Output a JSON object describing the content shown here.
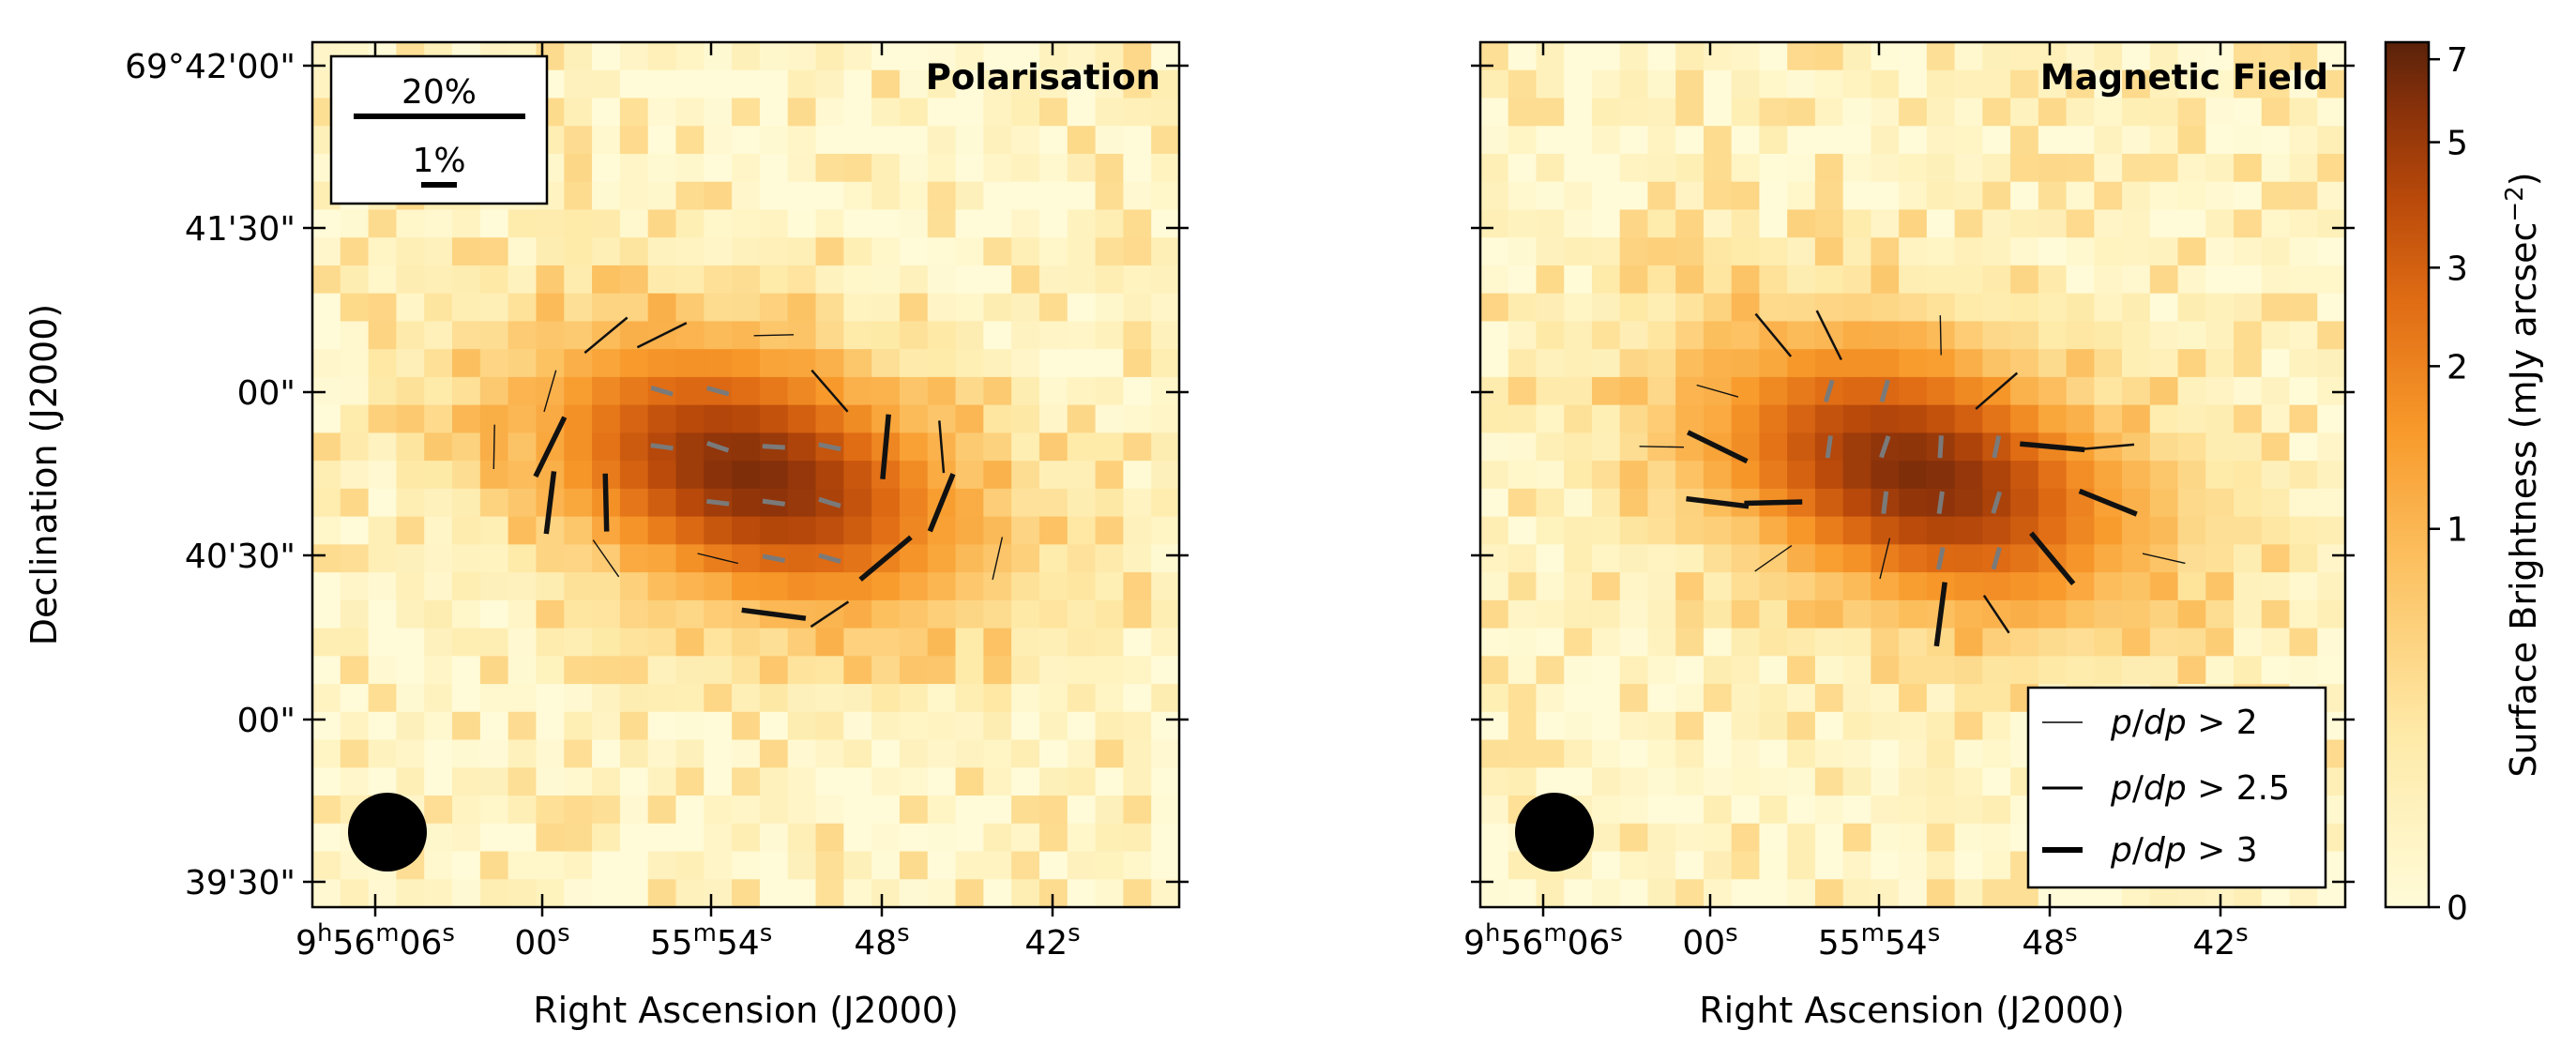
{
  "chart_data": [
    {
      "type": "heatmap",
      "title": "Polarisation",
      "xlabel": "Right Ascension (J2000)",
      "ylabel": "Declination (J2000)",
      "xticks": [
        {
          "main": "9",
          "sup1": "h",
          "mid": "56",
          "sup2": "m",
          "tail": "06",
          "sup3": "s"
        },
        {
          "main": "",
          "sup1": "",
          "mid": "",
          "sup2": "",
          "tail": "00",
          "sup3": "s"
        },
        {
          "main": "",
          "sup1": "",
          "mid": "55",
          "sup2": "m",
          "tail": "54",
          "sup3": "s"
        },
        {
          "main": "",
          "sup1": "",
          "mid": "",
          "sup2": "",
          "tail": "48",
          "sup3": "s"
        },
        {
          "main": "",
          "sup1": "",
          "mid": "",
          "sup2": "",
          "tail": "42",
          "sup3": "s"
        }
      ],
      "yticks": [
        "69°42'00\"",
        "41'30\"",
        "00\"",
        "40'30\"",
        "00\"",
        "39'30\""
      ],
      "scale_legend": [
        "20%",
        "1%"
      ],
      "beam": "circle",
      "vectors": "polarisation"
    },
    {
      "type": "heatmap",
      "title": "Magnetic Field",
      "xlabel": "Right Ascension (J2000)",
      "xticks": [
        {
          "main": "9",
          "sup1": "h",
          "mid": "56",
          "sup2": "m",
          "tail": "06",
          "sup3": "s"
        },
        {
          "main": "",
          "sup1": "",
          "mid": "",
          "sup2": "",
          "tail": "00",
          "sup3": "s"
        },
        {
          "main": "",
          "sup1": "",
          "mid": "55",
          "sup2": "m",
          "tail": "54",
          "sup3": "s"
        },
        {
          "main": "",
          "sup1": "",
          "mid": "",
          "sup2": "",
          "tail": "48",
          "sup3": "s"
        },
        {
          "main": "",
          "sup1": "",
          "mid": "",
          "sup2": "",
          "tail": "42",
          "sup3": "s"
        }
      ],
      "legend": [
        {
          "label": "p/dp > 2",
          "p": "p",
          "dp": "dp",
          "op": " > ",
          "val": "2",
          "weight": "thin"
        },
        {
          "label": "p/dp > 2.5",
          "p": "p",
          "dp": "dp",
          "op": " > ",
          "val": "2.5",
          "weight": "medium"
        },
        {
          "label": "p/dp > 3",
          "p": "p",
          "dp": "dp",
          "op": " > ",
          "val": "3",
          "weight": "thick"
        }
      ],
      "beam": "circle",
      "vectors": "magnetic-field"
    }
  ],
  "colorbar": {
    "label": "Surface Brightness (mJy arcsec",
    "label_sup": "−2",
    "label_end": ")",
    "ticks": [
      "7",
      "5",
      "3",
      "2",
      "1",
      "0"
    ],
    "tick_values": [
      7,
      5,
      3,
      2,
      1,
      0
    ],
    "range": [
      0,
      7.5
    ],
    "colormap": "afmhot_r",
    "colors": [
      "#fffbd8",
      "#fed98a",
      "#f89a2b",
      "#d95f0e",
      "#a03d0a",
      "#5a220a"
    ]
  }
}
